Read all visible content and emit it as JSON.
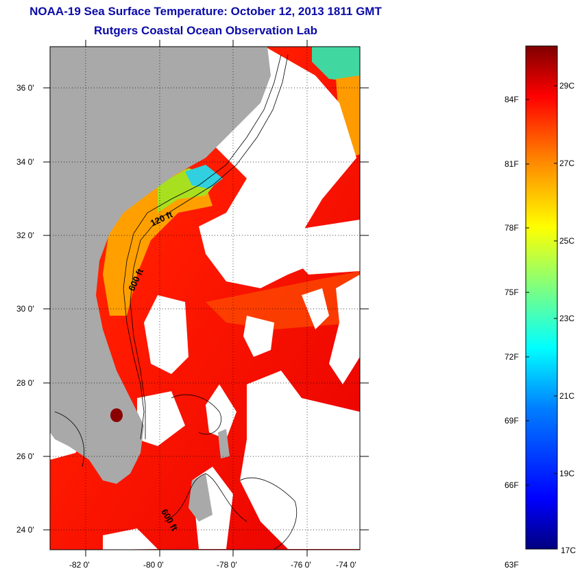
{
  "title": "NOAA-19 Sea Surface Temperature:  October 12, 2013 1811 GMT",
  "subtitle": "Rutgers Coastal Ocean Observation Lab",
  "lat_labels": [
    "36 0'",
    "34 0'",
    "32 0'",
    "30 0'",
    "28 0'",
    "26 0'",
    "24 0'"
  ],
  "lon_labels": [
    "-82 0'",
    "-80 0'",
    "-78 0'",
    "-76 0'",
    "-74 0'"
  ],
  "contour_labels": [
    "120 ft",
    "600 ft",
    "600 ft"
  ],
  "colorbar": {
    "f_labels": [
      "84F",
      "81F",
      "78F",
      "75F",
      "72F",
      "69F",
      "66F",
      "63F"
    ],
    "c_labels": [
      "29C",
      "27C",
      "25C",
      "23C",
      "21C",
      "19C",
      "17C"
    ],
    "min_c": 17,
    "max_c": 30.2,
    "colors": [
      "#00007f",
      "#0000ff",
      "#007fff",
      "#00ffff",
      "#7fff7f",
      "#ffff00",
      "#ff7f00",
      "#ff0000",
      "#7f0000"
    ]
  },
  "colors": {
    "land": "#a9a9a9",
    "cloud": "#ffffff",
    "title": "#0a0aa8"
  }
}
